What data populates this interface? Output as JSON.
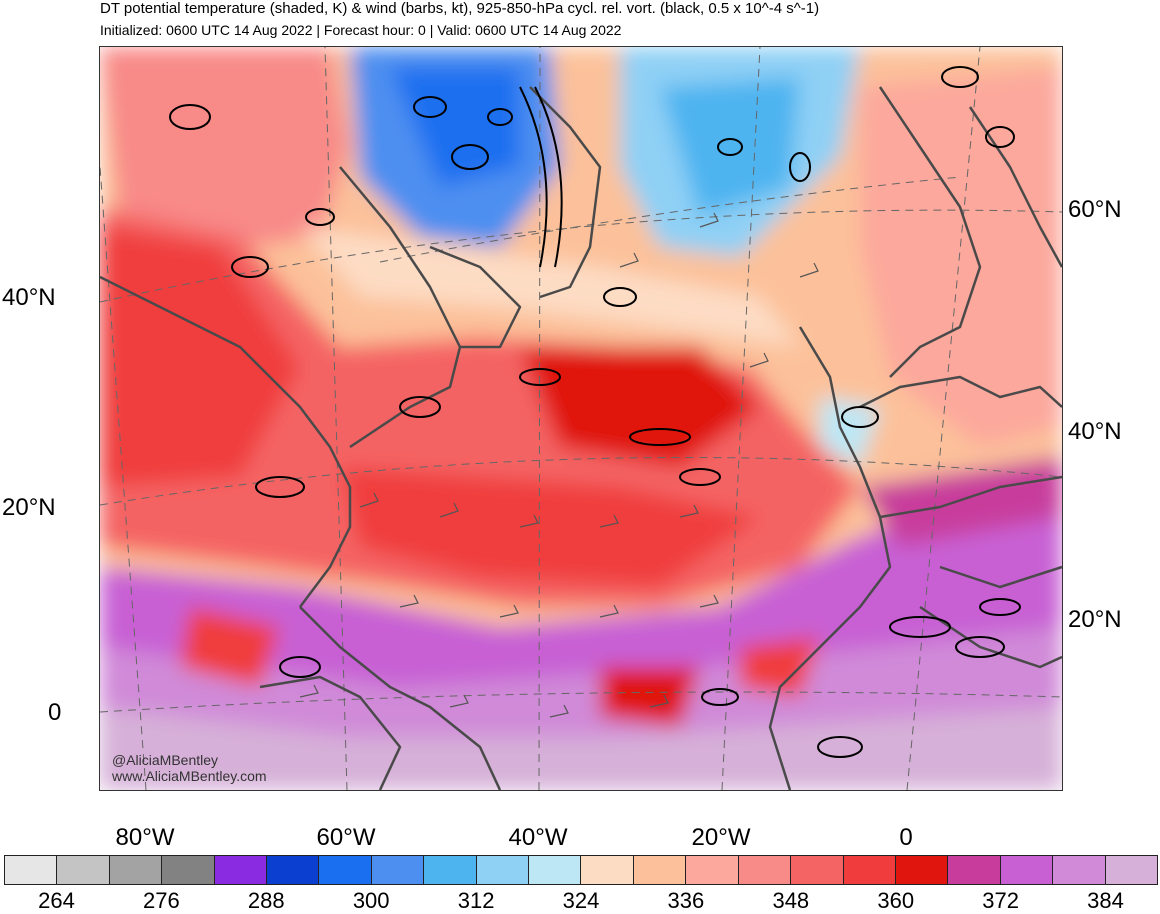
{
  "title": "DT potential temperature (shaded, K) & wind (barbs, kt), 925-850-hPa cycl. rel. vort. (black, 0.5 x 10^-4 s^-1)",
  "subtitle": "Initialized: 0600 UTC 14 Aug 2022 | Forecast hour: 0 | Valid: 0600 UTC 14 Aug 2022",
  "map": {
    "left_lat_labels": [
      "40°N",
      "20°N",
      "0"
    ],
    "right_lat_labels": [
      "60°N",
      "40°N",
      "20°N"
    ],
    "lon_labels": [
      "80°W",
      "60°W",
      "40°W",
      "20°W",
      "0"
    ],
    "credit_handle": "@AliciaMBentley",
    "credit_url": "www.AliciaMBentley.com"
  },
  "colorbar": {
    "colors": [
      "#e6e6e6",
      "#c4c4c4",
      "#a3a3a3",
      "#828282",
      "#8a2be2",
      "#0a3fd0",
      "#1a6ff0",
      "#4d8ff0",
      "#4db4f0",
      "#8fd0f5",
      "#bde7f5",
      "#fddcc4",
      "#fcc19a",
      "#fca89c",
      "#f88a88",
      "#f46464",
      "#f03c3c",
      "#e0160e",
      "#c83c9c",
      "#c860d4",
      "#d08ad8",
      "#d6b0d8"
    ],
    "tick_labels": [
      "264",
      "276",
      "288",
      "300",
      "312",
      "324",
      "336",
      "348",
      "360",
      "372",
      "384"
    ]
  }
}
